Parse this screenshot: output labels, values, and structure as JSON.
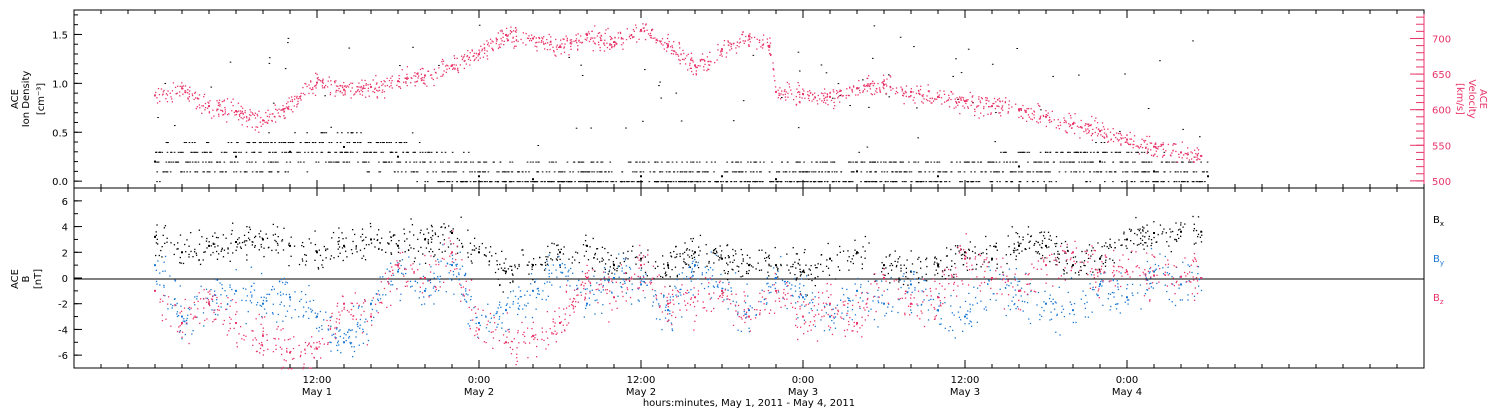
{
  "chart_data": [
    {
      "type": "scatter",
      "left_axis": {
        "label_lines": [
          "ACE",
          "Ion Density"
        ],
        "unit": "[cm⁻³]",
        "ylim": [
          -0.07,
          1.75
        ],
        "ticks": [
          "0.0",
          "0.5",
          "1.0",
          "1.5"
        ],
        "tick_values": [
          0,
          0.5,
          1.0,
          1.5
        ]
      },
      "right_axis": {
        "label_lines": [
          "ACE",
          "Velocity"
        ],
        "unit": "[km/s]",
        "ylim": [
          490,
          740
        ],
        "ticks": [
          "500",
          "550",
          "600",
          "650",
          "700"
        ],
        "tick_values": [
          500,
          550,
          600,
          650,
          700
        ]
      },
      "series": [
        {
          "name": "Ion Density",
          "axis": "left",
          "color": "#000000",
          "x_hours": [
            0,
            6,
            10,
            14,
            18,
            24,
            28,
            36,
            42,
            46,
            52,
            58,
            64,
            70,
            74,
            78
          ],
          "values": [
            0.2,
            0.25,
            0.3,
            0.35,
            0.25,
            0.05,
            0.02,
            0.05,
            0.05,
            0.02,
            0.1,
            0.05,
            0.15,
            0.2,
            0.1,
            0.05
          ]
        },
        {
          "name": "Velocity",
          "axis": "right",
          "color": "#e8356a",
          "x_hours": [
            0,
            2,
            4,
            6,
            8,
            9.5,
            12,
            14,
            16,
            18,
            20,
            22,
            24,
            26,
            28,
            30,
            32,
            34,
            36,
            38,
            40,
            42,
            44,
            45.5,
            46,
            48,
            50,
            52,
            54,
            56,
            58,
            60,
            62,
            64,
            66,
            68,
            70,
            72,
            74,
            76,
            77.5
          ],
          "values": [
            620,
            630,
            605,
            598,
            585,
            600,
            638,
            628,
            632,
            640,
            648,
            662,
            678,
            705,
            700,
            688,
            705,
            695,
            712,
            690,
            662,
            685,
            703,
            688,
            625,
            622,
            618,
            630,
            635,
            625,
            618,
            612,
            605,
            600,
            590,
            580,
            570,
            558,
            548,
            540,
            535
          ]
        }
      ]
    },
    {
      "type": "scatter",
      "ylabel_lines": [
        "ACE",
        "B"
      ],
      "unit": "[nT]",
      "ylim": [
        -7,
        7
      ],
      "yticks": [
        "-6",
        "-4",
        "-2",
        "0",
        "2",
        "4",
        "6"
      ],
      "ytick_values": [
        -6,
        -4,
        -2,
        0,
        2,
        4,
        6
      ],
      "zero_line": true,
      "legend_position": "right",
      "series": [
        {
          "name": "Bx",
          "color": "#000000",
          "x_hours": [
            0,
            2,
            4,
            6,
            8,
            10,
            12,
            14,
            16,
            18,
            20,
            22,
            24,
            26,
            28,
            30,
            32,
            34,
            36,
            38,
            40,
            42,
            44,
            46,
            48,
            50,
            52,
            54,
            56,
            58,
            60,
            62,
            64,
            66,
            68,
            70,
            72,
            74,
            76,
            77.5
          ],
          "values": [
            3.2,
            2.0,
            2.5,
            2.8,
            3.0,
            2.5,
            2.0,
            2.5,
            3.0,
            2.5,
            3.0,
            3.5,
            2.0,
            0.5,
            1.0,
            2.0,
            2.5,
            1.0,
            1.5,
            1.0,
            2.0,
            1.5,
            1.0,
            1.0,
            0.5,
            1.5,
            2.0,
            1.0,
            0.5,
            1.0,
            2.0,
            1.5,
            2.5,
            2.5,
            1.0,
            1.5,
            3.0,
            3.5,
            3.6,
            3.6
          ]
        },
        {
          "name": "By",
          "color": "#1a78d4",
          "x_hours": [
            0,
            2,
            4,
            6,
            8,
            10,
            12,
            14,
            16,
            18,
            20,
            22,
            24,
            26,
            28,
            30,
            32,
            34,
            36,
            38,
            40,
            42,
            44,
            46,
            48,
            50,
            52,
            54,
            56,
            58,
            60,
            62,
            64,
            66,
            68,
            70,
            72,
            74,
            76,
            77.5
          ],
          "values": [
            1.0,
            -3.0,
            -2.0,
            -1.0,
            -2.0,
            -1.5,
            -3.0,
            -5.0,
            -2.0,
            0.5,
            -1.0,
            1.0,
            -3.5,
            -2.5,
            -1.0,
            1.0,
            -2.0,
            0.0,
            -0.5,
            -2.5,
            1.0,
            -1.0,
            -2.5,
            0.0,
            -1.5,
            -3.0,
            -1.0,
            -2.0,
            -0.5,
            -2.5,
            -3.0,
            0.0,
            -1.0,
            -2.0,
            -2.5,
            -0.5,
            -1.5,
            0.5,
            -0.5,
            0.0
          ]
        },
        {
          "name": "Bz",
          "color": "#e8356a",
          "x_hours": [
            0,
            2,
            4,
            6,
            8,
            10,
            12,
            14,
            16,
            18,
            20,
            22,
            24,
            26,
            28,
            30,
            32,
            34,
            36,
            38,
            40,
            42,
            44,
            46,
            48,
            50,
            52,
            54,
            56,
            58,
            60,
            62,
            64,
            66,
            68,
            70,
            72,
            74,
            76,
            77.5
          ],
          "values": [
            -1.0,
            -3.5,
            -2.0,
            -3.5,
            -4.5,
            -5.8,
            -5.5,
            -2.0,
            -3.0,
            1.0,
            0.0,
            2.0,
            -4.0,
            -5.0,
            -4.5,
            -3.5,
            0.0,
            -1.5,
            1.0,
            -2.0,
            -1.5,
            -1.0,
            -3.0,
            -1.0,
            -3.0,
            -2.0,
            -3.5,
            0.0,
            -2.0,
            -1.5,
            1.5,
            0.0,
            -1.0,
            1.0,
            2.0,
            0.5,
            0.5,
            0.2,
            0.1,
            0.0
          ]
        }
      ]
    }
  ],
  "x_axis": {
    "range_hours": [
      -6,
      94
    ],
    "ticks": [
      {
        "hour": 12,
        "time": "12:00",
        "date": "May 1"
      },
      {
        "hour": 24,
        "time": "0:00",
        "date": "May 2"
      },
      {
        "hour": 36,
        "time": "12:00",
        "date": "May 2"
      },
      {
        "hour": 48,
        "time": "0:00",
        "date": "May 3"
      },
      {
        "hour": 60,
        "time": "12:00",
        "date": "May 3"
      },
      {
        "hour": 72,
        "time": "0:00",
        "date": "May 4"
      }
    ],
    "title": "hours:minutes, May  1, 2011 - May  4, 2011"
  }
}
